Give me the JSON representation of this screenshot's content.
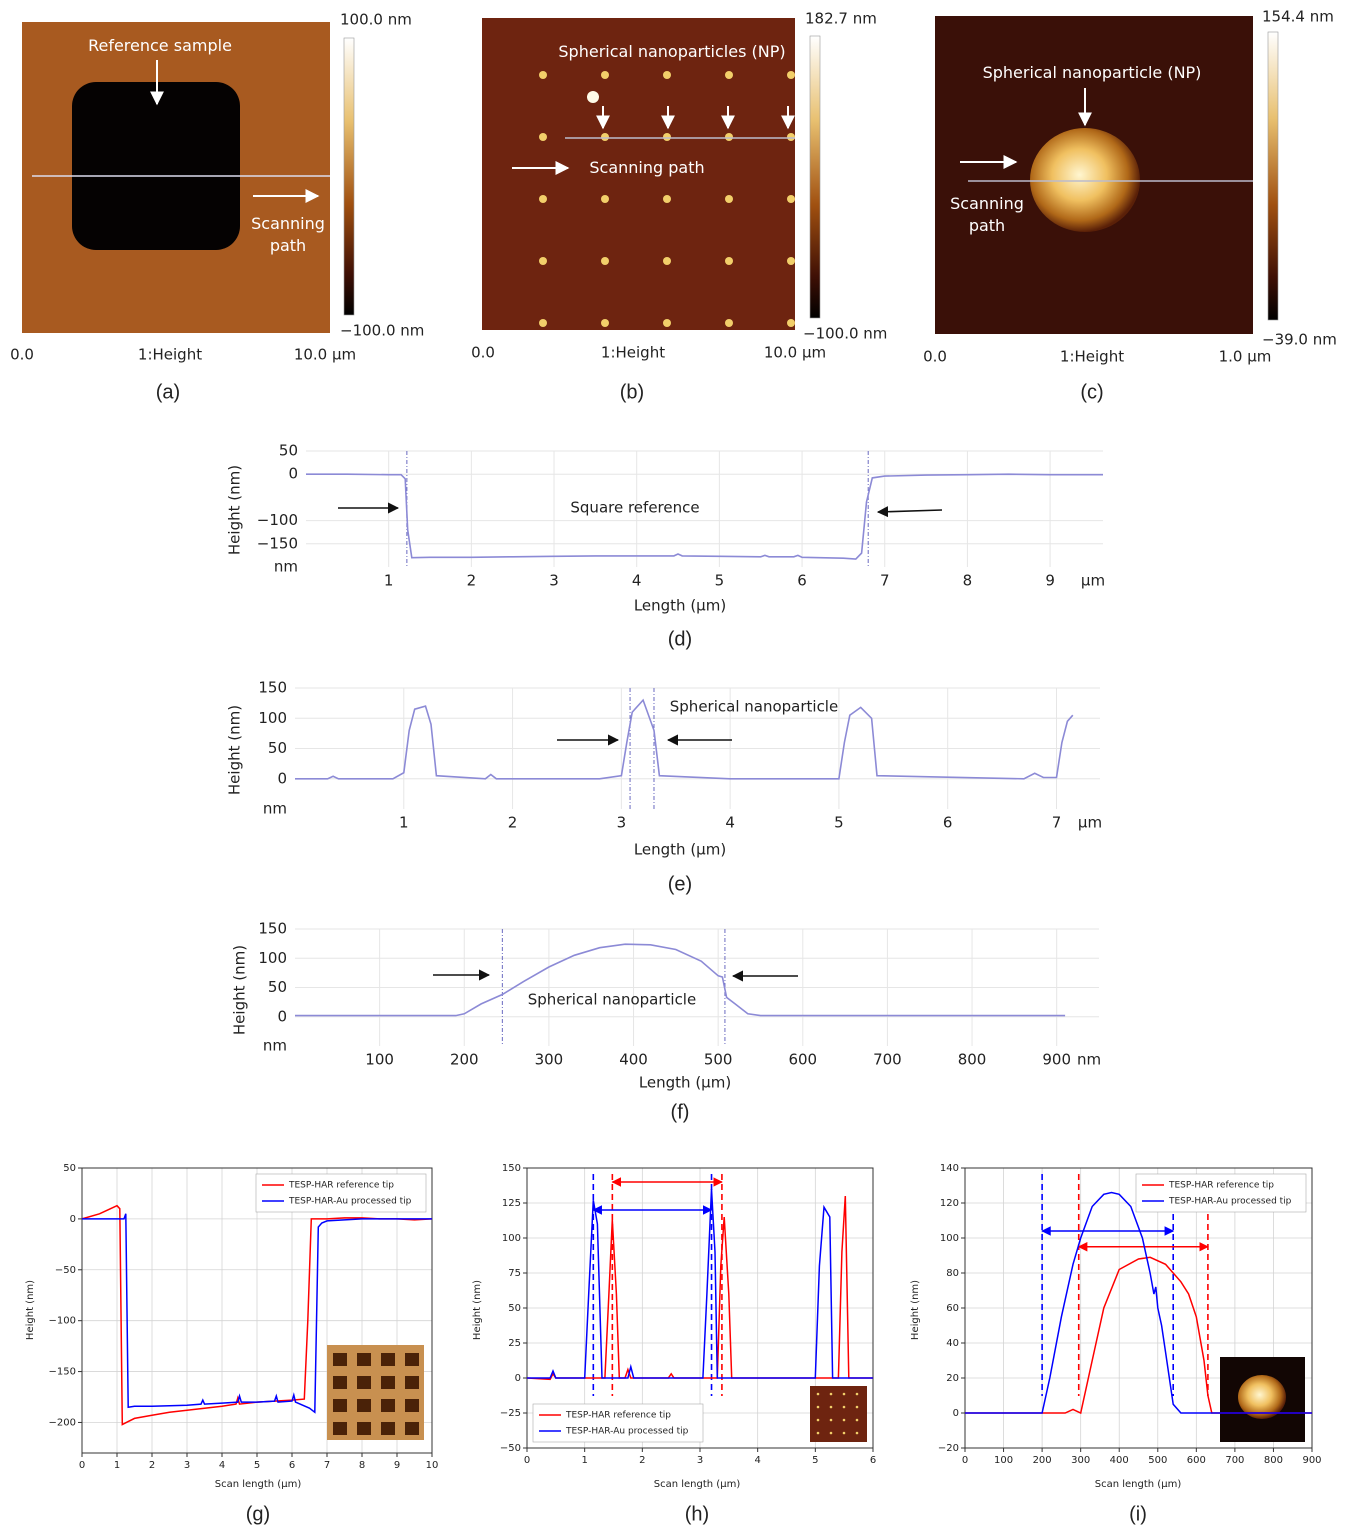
{
  "chart_data": [
    {
      "type": "afm-image",
      "panel_label": "(a)",
      "colorbar_max": "100.0 nm",
      "colorbar_min": "−100.0 nm",
      "x_start": "0.0",
      "x_label": "1:Height",
      "x_end": "10.0 μm",
      "annotations": [
        "Reference sample",
        "Scanning path"
      ]
    },
    {
      "type": "afm-image",
      "panel_label": "(b)",
      "colorbar_max": "182.7 nm",
      "colorbar_min": "−100.0 nm",
      "x_start": "0.0",
      "x_label": "1:Height",
      "x_end": "10.0 μm",
      "annotations": [
        "Spherical nanoparticles (NP)",
        "Scanning path"
      ]
    },
    {
      "type": "afm-image",
      "panel_label": "(c)",
      "colorbar_max": "154.4 nm",
      "colorbar_min": "−39.0 nm",
      "x_start": "0.0",
      "x_label": "1:Height",
      "x_end": "1.0 μm",
      "annotations": [
        "Spherical nanoparticle (NP)",
        "Scanning path"
      ]
    },
    {
      "type": "profile",
      "panel_label": "(d)",
      "xlabel": "Length (μm)",
      "ylabel": "Height (nm)",
      "x_unit": "μm",
      "y_unit": "nm",
      "annotation": "Square reference",
      "color": "#8c8ad6",
      "grid": true,
      "xlim": [
        0,
        9.64
      ],
      "ylim": [
        -200,
        50
      ],
      "xticks": [
        1,
        2,
        3,
        4,
        5,
        6,
        7,
        8,
        9
      ],
      "yticks": [
        50,
        0,
        {
          "value": -100,
          "label": "−100"
        },
        {
          "value": -150,
          "label": "−150"
        }
      ],
      "markers": [
        1.22,
        6.8
      ],
      "x": [
        0,
        0.5,
        1.0,
        1.15,
        1.2,
        1.23,
        1.28,
        1.5,
        2,
        2.5,
        3,
        3.5,
        4,
        4.45,
        4.5,
        4.55,
        5,
        5.5,
        5.55,
        5.6,
        5.9,
        5.95,
        6,
        6.5,
        6.65,
        6.72,
        6.78,
        6.85,
        7,
        7.5,
        8,
        8.5,
        9,
        9.64
      ],
      "values": [
        0,
        0,
        -1,
        -1,
        -10,
        -120,
        -180,
        -179,
        -179,
        -178,
        -177,
        -176,
        -176,
        -176,
        -172,
        -176,
        -177,
        -178,
        -175,
        -178,
        -178,
        -175,
        -179,
        -181,
        -183,
        -170,
        -60,
        -8,
        -4,
        -2,
        -1,
        0,
        -1,
        -1
      ]
    },
    {
      "type": "profile",
      "panel_label": "(e)",
      "xlabel": "Length (μm)",
      "ylabel": "Height (nm)",
      "x_unit": "μm",
      "y_unit": "nm",
      "annotation": "Spherical nanoparticle",
      "color": "#8c8ad6",
      "grid": true,
      "xlim": [
        0,
        7.4
      ],
      "ylim": [
        -50,
        150
      ],
      "xticks": [
        1,
        2,
        3,
        4,
        5,
        6,
        7
      ],
      "yticks": [
        150,
        100,
        50,
        0
      ],
      "markers": [
        3.08,
        3.3
      ],
      "x": [
        0,
        0.3,
        0.35,
        0.4,
        0.9,
        1.0,
        1.05,
        1.1,
        1.2,
        1.25,
        1.3,
        1.75,
        1.8,
        1.85,
        2.8,
        3.0,
        3.05,
        3.1,
        3.2,
        3.3,
        3.35,
        4.0,
        5.0,
        5.05,
        5.1,
        5.2,
        5.3,
        5.35,
        6.7,
        6.8,
        6.88,
        7.0,
        7.05,
        7.1,
        7.15
      ],
      "values": [
        0,
        0,
        4,
        0,
        0,
        10,
        80,
        115,
        120,
        90,
        5,
        0,
        7,
        0,
        0,
        5,
        60,
        110,
        130,
        80,
        5,
        0,
        0,
        60,
        105,
        118,
        100,
        5,
        0,
        9,
        2,
        2,
        60,
        95,
        105
      ]
    },
    {
      "type": "profile",
      "panel_label": "(f)",
      "xlabel": "Length (μm)",
      "ylabel": "Height (nm)",
      "x_unit": "nm",
      "y_unit": "nm",
      "annotation": "Spherical nanoparticle",
      "color": "#8c8ad6",
      "grid": true,
      "xlim": [
        0,
        950
      ],
      "ylim": [
        -50,
        150
      ],
      "xticks": [
        100,
        200,
        300,
        400,
        500,
        600,
        700,
        800,
        900
      ],
      "yticks": [
        150,
        100,
        50,
        0
      ],
      "markers": [
        245,
        508
      ],
      "x": [
        0,
        100,
        190,
        200,
        220,
        245,
        270,
        300,
        330,
        360,
        390,
        420,
        450,
        480,
        500,
        505,
        510,
        520,
        535,
        550,
        700,
        800,
        910
      ],
      "values": [
        2,
        2,
        2,
        5,
        22,
        38,
        60,
        85,
        105,
        118,
        124,
        123,
        115,
        95,
        70,
        68,
        33,
        22,
        5,
        2,
        2,
        2,
        2
      ]
    },
    {
      "type": "line",
      "panel_label": "(g)",
      "xlabel": "Scan length (μm)",
      "ylabel": "Height (nm)",
      "grid": true,
      "legend": "upper right",
      "xlim": [
        0,
        10
      ],
      "ylim": [
        -230,
        50
      ],
      "xticks": [
        0,
        1,
        2,
        3,
        4,
        5,
        6,
        7,
        8,
        9,
        10
      ],
      "yticks": [
        50,
        0,
        {
          "value": -50,
          "label": "−50"
        },
        {
          "value": -100,
          "label": "−100"
        },
        {
          "value": -150,
          "label": "−150"
        },
        {
          "value": -200,
          "label": "−200"
        }
      ],
      "series": [
        {
          "name": "TESP-HAR reference tip",
          "color": "#ff0000",
          "x": [
            0,
            0.5,
            1.0,
            1.08,
            1.15,
            1.5,
            2,
            2.5,
            3,
            3.5,
            4,
            4.4,
            4.45,
            4.5,
            5,
            5.5,
            6,
            6.35,
            6.45,
            6.55,
            7,
            7.5,
            8,
            8.5,
            9,
            9.5,
            10
          ],
          "values": [
            0,
            5,
            13,
            10,
            -202,
            -196,
            -193,
            -190,
            -188,
            -186,
            -184,
            -182,
            -176,
            -182,
            -180,
            -179,
            -178,
            -177,
            -100,
            0,
            0,
            1,
            1,
            0,
            0,
            -1,
            0
          ]
        },
        {
          "name": "TESP-HAR-Au processed tip",
          "color": "#0000ff",
          "x": [
            0,
            0.5,
            1.2,
            1.25,
            1.32,
            1.5,
            2,
            3,
            3.4,
            3.45,
            3.5,
            4,
            4.45,
            4.5,
            4.55,
            5,
            5.5,
            5.55,
            5.6,
            6,
            6.05,
            6.1,
            6.5,
            6.65,
            6.75,
            6.85,
            7,
            8,
            9,
            10
          ],
          "values": [
            0,
            0,
            0,
            5,
            -185,
            -184,
            -184,
            -183,
            -182,
            -178,
            -182,
            -181,
            -180,
            -174,
            -180,
            -180,
            -179,
            -174,
            -180,
            -179,
            -173,
            -180,
            -186,
            -190,
            -8,
            -4,
            -2,
            0,
            0,
            0
          ]
        }
      ]
    },
    {
      "type": "line",
      "panel_label": "(h)",
      "xlabel": "Scan length (μm)",
      "ylabel": "Height (nm)",
      "grid": true,
      "legend": "lower left",
      "xlim": [
        0,
        6
      ],
      "ylim": [
        -50,
        150
      ],
      "xticks": [
        0,
        1,
        2,
        3,
        4,
        5,
        6
      ],
      "yticks": [
        {
          "value": -50,
          "label": "−50"
        },
        {
          "value": -25,
          "label": "−25"
        },
        0,
        25,
        50,
        75,
        100,
        125,
        150
      ],
      "markers": [
        {
          "value": 1.15,
          "color": "#0000ff"
        },
        {
          "value": 3.2,
          "color": "#0000ff"
        },
        {
          "value": 1.48,
          "color": "#ff0000"
        },
        {
          "value": 3.38,
          "color": "#ff0000"
        }
      ],
      "spans": [
        {
          "from": 1.48,
          "to": 3.38,
          "y": 140,
          "color": "#ff0000"
        },
        {
          "from": 1.15,
          "to": 3.2,
          "y": 120,
          "color": "#0000ff"
        }
      ],
      "series": [
        {
          "name": "TESP-HAR reference tip",
          "color": "#ff0000",
          "x": [
            0,
            0.4,
            0.45,
            0.5,
            1.35,
            1.42,
            1.48,
            1.55,
            1.6,
            1.7,
            1.75,
            1.8,
            2.45,
            2.5,
            2.55,
            3.3,
            3.36,
            3.42,
            3.5,
            3.55,
            5.4,
            5.46,
            5.52,
            5.58,
            6
          ],
          "values": [
            0,
            -1,
            3,
            0,
            0,
            60,
            113,
            60,
            0,
            0,
            6,
            0,
            0,
            3,
            0,
            0,
            80,
            115,
            60,
            0,
            0,
            90,
            130,
            0,
            0
          ]
        },
        {
          "name": "TESP-HAR-Au processed tip",
          "color": "#0000ff",
          "x": [
            0,
            0.4,
            0.45,
            0.5,
            1.0,
            1.07,
            1.15,
            1.22,
            1.3,
            1.75,
            1.8,
            1.85,
            3.05,
            3.12,
            3.2,
            3.26,
            3.3,
            5.0,
            5.07,
            5.15,
            5.25,
            5.3,
            6
          ],
          "values": [
            0,
            0,
            5,
            0,
            0,
            60,
            127,
            110,
            0,
            0,
            8,
            0,
            0,
            60,
            135,
            90,
            0,
            0,
            80,
            122,
            115,
            0,
            0
          ]
        }
      ]
    },
    {
      "type": "line",
      "panel_label": "(i)",
      "xlabel": "Scan length (μm)",
      "ylabel": "Height (nm)",
      "grid": true,
      "legend": "upper right",
      "xlim": [
        0,
        900
      ],
      "ylim": [
        -20,
        140
      ],
      "xticks": [
        0,
        100,
        200,
        300,
        400,
        500,
        600,
        700,
        800,
        900
      ],
      "yticks": [
        {
          "value": -20,
          "label": "−20"
        },
        0,
        20,
        40,
        60,
        80,
        100,
        120,
        140
      ],
      "markers": [
        {
          "value": 200,
          "color": "#0000ff"
        },
        {
          "value": 540,
          "color": "#0000ff"
        },
        {
          "value": 295,
          "color": "#ff0000"
        },
        {
          "value": 630,
          "color": "#ff0000"
        }
      ],
      "spans": [
        {
          "from": 200,
          "to": 540,
          "y": 104,
          "color": "#0000ff"
        },
        {
          "from": 295,
          "to": 630,
          "y": 95,
          "color": "#ff0000"
        }
      ],
      "series": [
        {
          "name": "TESP-HAR reference tip",
          "color": "#ff0000",
          "x": [
            0,
            260,
            280,
            300,
            330,
            360,
            400,
            450,
            480,
            520,
            540,
            560,
            580,
            600,
            620,
            630,
            640,
            900
          ],
          "values": [
            0,
            0,
            2,
            0,
            30,
            60,
            82,
            88,
            89,
            85,
            80,
            75,
            68,
            55,
            30,
            10,
            0,
            0
          ]
        },
        {
          "name": "TESP-HAR-Au processed tip",
          "color": "#0000ff",
          "x": [
            0,
            200,
            220,
            250,
            280,
            300,
            330,
            360,
            380,
            400,
            430,
            460,
            480,
            490,
            495,
            500,
            510,
            520,
            540,
            560,
            900
          ],
          "values": [
            0,
            0,
            20,
            55,
            85,
            100,
            118,
            125,
            126,
            125,
            118,
            100,
            80,
            68,
            72,
            60,
            50,
            35,
            5,
            0,
            0
          ]
        }
      ]
    }
  ]
}
